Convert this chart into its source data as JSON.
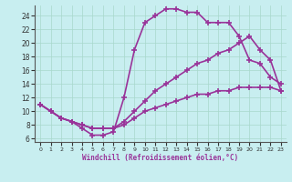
{
  "xlabel": "Windchill (Refroidissement éolien,°C)",
  "xlim": [
    -0.5,
    23.5
  ],
  "ylim": [
    5.5,
    25.5
  ],
  "xticks": [
    0,
    1,
    2,
    3,
    4,
    5,
    6,
    7,
    8,
    9,
    10,
    11,
    12,
    13,
    14,
    15,
    16,
    17,
    18,
    19,
    20,
    21,
    22,
    23
  ],
  "yticks": [
    6,
    8,
    10,
    12,
    14,
    16,
    18,
    20,
    22,
    24
  ],
  "bg_color": "#c8eef0",
  "grid_color": "#a8d8cc",
  "line_color": "#993399",
  "line1_x": [
    0,
    1,
    2,
    3,
    4,
    5,
    6,
    7,
    8,
    9,
    10,
    11,
    12,
    13,
    14,
    15,
    16,
    17,
    18,
    19,
    20,
    21,
    22,
    23
  ],
  "line1_y": [
    11,
    10,
    9,
    8.5,
    7.5,
    6.5,
    6.5,
    7,
    12,
    19,
    23,
    24,
    25,
    25,
    24.5,
    24.5,
    23,
    23,
    23,
    21,
    17.5,
    17,
    15,
    14
  ],
  "line2_x": [
    0,
    1,
    2,
    3,
    4,
    5,
    6,
    7,
    8,
    9,
    10,
    11,
    12,
    13,
    14,
    15,
    16,
    17,
    18,
    19,
    20,
    21,
    22,
    23
  ],
  "line2_y": [
    11,
    10,
    9,
    8.5,
    8,
    7.5,
    7.5,
    7.5,
    8.5,
    10,
    11.5,
    13,
    14,
    15,
    16,
    17,
    17.5,
    18.5,
    19,
    20,
    21,
    19,
    17.5,
    13
  ],
  "line3_x": [
    0,
    1,
    2,
    3,
    4,
    5,
    6,
    7,
    8,
    9,
    10,
    11,
    12,
    13,
    14,
    15,
    16,
    17,
    18,
    19,
    20,
    21,
    22,
    23
  ],
  "line3_y": [
    11,
    10,
    9,
    8.5,
    8,
    7.5,
    7.5,
    7.5,
    8,
    9,
    10,
    10.5,
    11,
    11.5,
    12,
    12.5,
    12.5,
    13,
    13,
    13.5,
    13.5,
    13.5,
    13.5,
    13
  ]
}
